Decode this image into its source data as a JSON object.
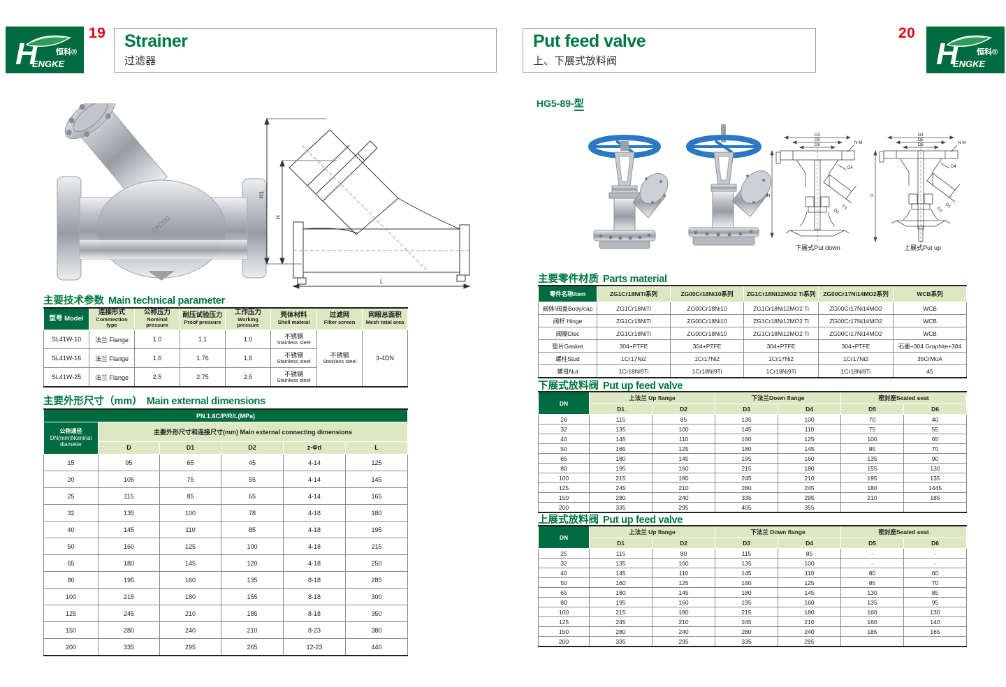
{
  "brand": {
    "logo_zh": "恒科®",
    "logo_h": "H",
    "logo_en": "ENGKE"
  },
  "left_page": {
    "page_number": "19",
    "title_en": "Strainer",
    "title_zh": "过滤器",
    "drawing_labels": {
      "h1": "H1",
      "h": "H",
      "l": "L"
    },
    "tech_table": {
      "title_zh": "主要技术参数",
      "title_en": "Main technical parameter",
      "headers": [
        {
          "zh": "型号 Model",
          "en": ""
        },
        {
          "zh": "连接形式",
          "en": "Commection type"
        },
        {
          "zh": "公称压力",
          "en": "Nominal pressure"
        },
        {
          "zh": "耐压试验压力",
          "en": "Proof pressure"
        },
        {
          "zh": "工作压力",
          "en": "Working pressure"
        },
        {
          "zh": "壳体材料",
          "en": "Shell mateial"
        },
        {
          "zh": "过滤网",
          "en": "Filter screen"
        },
        {
          "zh": "网眼总面积",
          "en": "Mesh total area"
        }
      ],
      "rows": [
        [
          "SL41W-10",
          "法兰 Flange",
          "1.0",
          "1.1",
          "1.0"
        ],
        [
          "SL41W-16",
          "法兰 Flange",
          "1.6",
          "1.76",
          "1.6"
        ],
        [
          "SL41W-25",
          "法兰 Flange",
          "2.5",
          "2.75",
          "2.5"
        ]
      ],
      "shell_zh": "不锈钢",
      "shell_en": "Stainless steel",
      "filter_zh": "不锈钢",
      "filter_en": "Stainless steel",
      "mesh_total": "3-4DN"
    },
    "dim_table": {
      "title_zh": "主要外形尺寸（mm）",
      "title_en": "Main external dimensions",
      "pn": "PN.1.6C/P/R/L(MPa)",
      "dn_line1": "公称通径",
      "dn_line2": "DN(mm)Nominal",
      "dn_line3": "diameter",
      "group_label": "主要外形尺寸和连接尺寸(mm) Main external connecting dimensions",
      "cols": [
        "D",
        "D1",
        "D2",
        "z-Φd",
        "L"
      ],
      "rows": [
        [
          "15",
          "95",
          "65",
          "45",
          "4-14",
          "125"
        ],
        [
          "20",
          "105",
          "75",
          "55",
          "4-14",
          "145"
        ],
        [
          "25",
          "115",
          "85",
          "65",
          "4-14",
          "165"
        ],
        [
          "32",
          "135",
          "100",
          "78",
          "4-18",
          "180"
        ],
        [
          "40",
          "145",
          "110",
          "85",
          "4-18",
          "195"
        ],
        [
          "50",
          "160",
          "125",
          "100",
          "4-18",
          "215"
        ],
        [
          "65",
          "180",
          "145",
          "120",
          "4-18",
          "250"
        ],
        [
          "80",
          "195",
          "160",
          "135",
          "8-18",
          "285"
        ],
        [
          "100",
          "215",
          "180",
          "155",
          "8-18",
          "300"
        ],
        [
          "125",
          "245",
          "210",
          "185",
          "8-18",
          "350"
        ],
        [
          "150",
          "280",
          "240",
          "210",
          "8-23",
          "380"
        ],
        [
          "200",
          "335",
          "295",
          "265",
          "12-23",
          "440"
        ]
      ]
    }
  },
  "right_page": {
    "page_number": "20",
    "title_en": "Put feed valve",
    "title_zh": "上、下展式放料阀",
    "model": "HG5-89-",
    "model_tail": "型",
    "captions": {
      "down": "下展式Put down",
      "up": "上展式Put up"
    },
    "drawing_labels": {
      "d3": "D3",
      "d5": "D5",
      "d6": "D6",
      "nm": "N-M",
      "d4": "D4",
      "h": "H",
      "d1": "D1",
      "d2": "D2"
    },
    "parts_table": {
      "title_zh": "主要零件材质",
      "title_en": "Parts material",
      "headers": [
        "零件名称Item",
        "ZG1Cr18NiTi系列",
        "ZG00Cr18Ni10系列",
        "ZG1Cr18Ni12MO2 Ti系列",
        "ZG00Cr17Ni14MO2系列",
        "WCB系列"
      ],
      "rows": [
        [
          "阀体/阀盖Body/cap",
          "ZG1Cr18NiTi",
          "ZG00Cr18Ni10",
          "ZG1Cr18Ni12MO2 Ti",
          "ZG00Cr17Ni14MO2",
          "WCB"
        ],
        [
          "阀杆 Hinge",
          "ZG1Cr18NiTi",
          "ZG00Cr18Ni10",
          "ZG1Cr18Ni12MO2 Ti",
          "ZG00Cr17Ni14MO2",
          "WCB"
        ],
        [
          "阀瓣Disc",
          "ZG1Cr18NiTi",
          "ZG00Cr18Ni10",
          "ZG1Cr18Ni12MO2 Ti",
          "ZG00Cr17Ni14MO2",
          "WCB"
        ],
        [
          "垫片Gasket",
          "304+PTFE",
          "304+PTFE",
          "304+PTFE",
          "304+PTFE",
          "石墨+304 Graphite+304"
        ],
        [
          "螺柱Stud",
          "1Cr17Ni2",
          "1Cr17Ni2",
          "1Cr17Ni2",
          "1Cr17Ni2",
          "35CrMoA"
        ],
        [
          "螺母Nut",
          "1Cr18Ni9Ti",
          "1Cr18Ni9Ti",
          "1Cr18Ni9Ti",
          "1Cr18Ni9Ti",
          "45"
        ]
      ]
    },
    "down_table": {
      "title_zh": "下展式放料阀",
      "title_en": "Put up feed valve",
      "dn": "DN",
      "groups": [
        "上法兰 Up flange",
        "下法兰Down flange",
        "密封座Sealed seat"
      ],
      "cols": [
        "D1",
        "D2",
        "D3",
        "D4",
        "D5",
        "D6"
      ],
      "rows": [
        [
          "26",
          "115",
          "85",
          "135",
          "100",
          "70",
          "40"
        ],
        [
          "32",
          "135",
          "100",
          "145",
          "110",
          "75",
          "55"
        ],
        [
          "40",
          "145",
          "110",
          "160",
          "125",
          "100",
          "65"
        ],
        [
          "50",
          "165",
          "125",
          "180",
          "145",
          "85",
          "70"
        ],
        [
          "65",
          "180",
          "145",
          "195",
          "160",
          "135",
          "90"
        ],
        [
          "80",
          "195",
          "160",
          "215",
          "180",
          "155",
          "130"
        ],
        [
          "100",
          "215",
          "180",
          "245",
          "210",
          "195",
          "135"
        ],
        [
          "125",
          "245",
          "210",
          "280",
          "245",
          "180",
          "1445"
        ],
        [
          "150",
          "280",
          "240",
          "335",
          "295",
          "210",
          "185"
        ],
        [
          "200",
          "335",
          "295",
          "405",
          "355",
          "",
          ""
        ]
      ]
    },
    "up_table": {
      "title_zh": "上展式放料阀",
      "title_en": "Put up feed valve",
      "dn": "DN",
      "groups": [
        "上法兰 Up flange",
        "下法兰 Down flange",
        "密封座Sealed seat"
      ],
      "cols": [
        "D1",
        "D2",
        "D3",
        "D4",
        "D5",
        "D6"
      ],
      "rows": [
        [
          "25",
          "115",
          "80",
          "115",
          "85",
          "-",
          "-"
        ],
        [
          "32",
          "135",
          "100",
          "135",
          "100",
          "-",
          "-"
        ],
        [
          "40",
          "145",
          "110",
          "145",
          "110",
          "80",
          "60"
        ],
        [
          "50",
          "160",
          "125",
          "160",
          "125",
          "85",
          "70"
        ],
        [
          "65",
          "180",
          "145",
          "180",
          "145",
          "130",
          "85"
        ],
        [
          "80",
          "195",
          "160",
          "195",
          "160",
          "135",
          "95"
        ],
        [
          "100",
          "215",
          "180",
          "215",
          "180",
          "160",
          "130"
        ],
        [
          "125",
          "245",
          "210",
          "245",
          "210",
          "160",
          "140"
        ],
        [
          "150",
          "280",
          "240",
          "280",
          "240",
          "185",
          "165"
        ],
        [
          "200",
          "335",
          "295",
          "335",
          "295",
          "",
          ""
        ]
      ]
    }
  }
}
